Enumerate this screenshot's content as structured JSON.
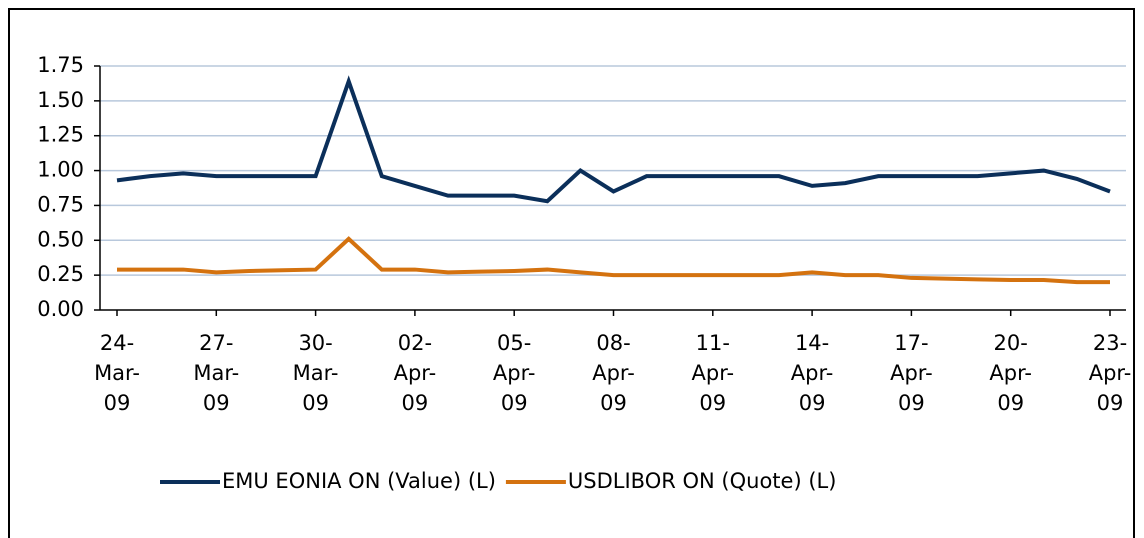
{
  "chart_data": {
    "type": "line",
    "categories": [
      "24-Mar-09",
      null,
      null,
      "27-Mar-09",
      null,
      null,
      "30-Mar-09",
      null,
      null,
      "02-Apr-09",
      null,
      null,
      "05-Apr-09",
      null,
      null,
      "08-Apr-09",
      null,
      null,
      "11-Apr-09",
      null,
      null,
      "14-Apr-09",
      null,
      null,
      "17-Apr-09",
      null,
      null,
      "20-Apr-09",
      null,
      null,
      "23-Apr-09"
    ],
    "series": [
      {
        "name": "EMU EONIA ON (Value) (L)",
        "color": "#0b2f5a",
        "values": [
          0.93,
          0.96,
          0.98,
          0.96,
          0.96,
          0.96,
          0.96,
          1.64,
          0.96,
          0.89,
          0.82,
          0.82,
          0.82,
          0.78,
          1.0,
          0.85,
          0.96,
          0.96,
          0.96,
          0.96,
          0.96,
          0.89,
          0.91,
          0.96,
          0.96,
          0.96,
          0.96,
          0.98,
          1.0,
          0.94,
          0.85
        ]
      },
      {
        "name": "USDLIBOR ON (Quote) (L)",
        "color": "#d4720f",
        "values": [
          0.29,
          0.29,
          0.29,
          0.27,
          0.28,
          0.285,
          0.29,
          0.51,
          0.29,
          0.29,
          0.27,
          0.275,
          0.28,
          0.29,
          0.27,
          0.25,
          0.25,
          0.25,
          0.25,
          0.25,
          0.25,
          0.27,
          0.25,
          0.25,
          0.23,
          0.225,
          0.22,
          0.215,
          0.215,
          0.2,
          0.2
        ]
      }
    ],
    "ylim": [
      0,
      1.75
    ],
    "yticks": [
      {
        "value": 0,
        "label": "0.00"
      },
      {
        "value": 0.25,
        "label": "0.25"
      },
      {
        "value": 0.5,
        "label": "0.50"
      },
      {
        "value": 0.75,
        "label": "0.75"
      },
      {
        "value": 1,
        "label": "1.00"
      },
      {
        "value": 1.25,
        "label": "1.25"
      },
      {
        "value": 1.5,
        "label": "1.50"
      },
      {
        "value": 1.75,
        "label": "1.75"
      }
    ],
    "grid": true,
    "legend": "bottom"
  }
}
